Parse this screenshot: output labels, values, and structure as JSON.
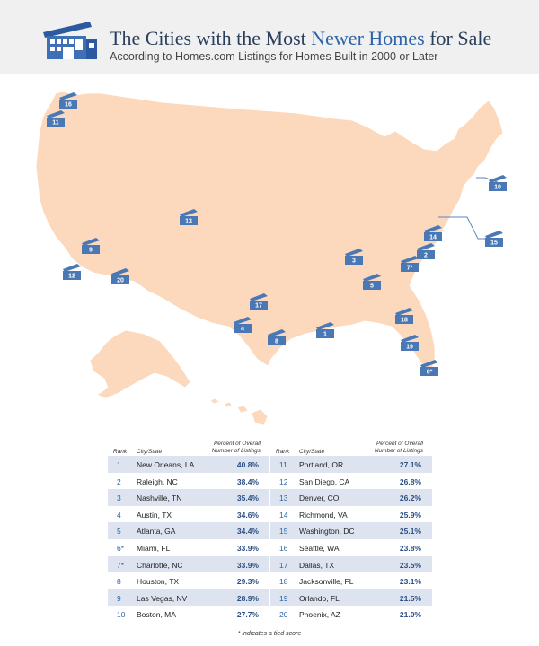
{
  "header": {
    "title_pre": "The Cities with the Most ",
    "title_highlight": "Newer Homes",
    "title_post": " for Sale",
    "subtitle": "According to Homes.com Listings for Homes Built in 2000 or Later"
  },
  "colors": {
    "land": "#fcd9bd",
    "border": "#ffffff",
    "marker": "#4a78b5",
    "header_bg": "#f0f0f0",
    "row_stripe": "#dde4ef",
    "accent": "#2c64a8"
  },
  "map_markers": [
    "16",
    "11",
    "12",
    "9",
    "20",
    "13",
    "17",
    "4",
    "8",
    "1",
    "3",
    "5",
    "18",
    "19",
    "6*",
    "7*",
    "2",
    "14",
    "15",
    "10"
  ],
  "table": {
    "headers": {
      "rank": "Rank",
      "city": "City/State",
      "pct_line1": "Percent of Overall",
      "pct_line2": "Number of Listings"
    },
    "left": [
      {
        "rank": "1",
        "city": "New Orleans, LA",
        "pct": "40.8%"
      },
      {
        "rank": "2",
        "city": "Raleigh, NC",
        "pct": "38.4%"
      },
      {
        "rank": "3",
        "city": "Nashville, TN",
        "pct": "35.4%"
      },
      {
        "rank": "4",
        "city": "Austin, TX",
        "pct": "34.6%"
      },
      {
        "rank": "5",
        "city": "Atlanta, GA",
        "pct": "34.4%"
      },
      {
        "rank": "6*",
        "city": "Miami, FL",
        "pct": "33.9%"
      },
      {
        "rank": "7*",
        "city": "Charlotte, NC",
        "pct": "33.9%"
      },
      {
        "rank": "8",
        "city": "Houston, TX",
        "pct": "29.3%"
      },
      {
        "rank": "9",
        "city": "Las Vegas, NV",
        "pct": "28.9%"
      },
      {
        "rank": "10",
        "city": "Boston, MA",
        "pct": "27.7%"
      }
    ],
    "right": [
      {
        "rank": "11",
        "city": "Portland, OR",
        "pct": "27.1%"
      },
      {
        "rank": "12",
        "city": "San Diego, CA",
        "pct": "26.8%"
      },
      {
        "rank": "13",
        "city": "Denver, CO",
        "pct": "26.2%"
      },
      {
        "rank": "14",
        "city": "Richmond, VA",
        "pct": "25.9%"
      },
      {
        "rank": "15",
        "city": "Washington, DC",
        "pct": "25.1%"
      },
      {
        "rank": "16",
        "city": "Seattle, WA",
        "pct": "23.8%"
      },
      {
        "rank": "17",
        "city": "Dallas, TX",
        "pct": "23.5%"
      },
      {
        "rank": "18",
        "city": "Jacksonville, FL",
        "pct": "23.1%"
      },
      {
        "rank": "19",
        "city": "Orlando, FL",
        "pct": "21.5%"
      },
      {
        "rank": "20",
        "city": "Phoenix, AZ",
        "pct": "21.0%"
      }
    ]
  },
  "footnote": "* indicates a tied score"
}
